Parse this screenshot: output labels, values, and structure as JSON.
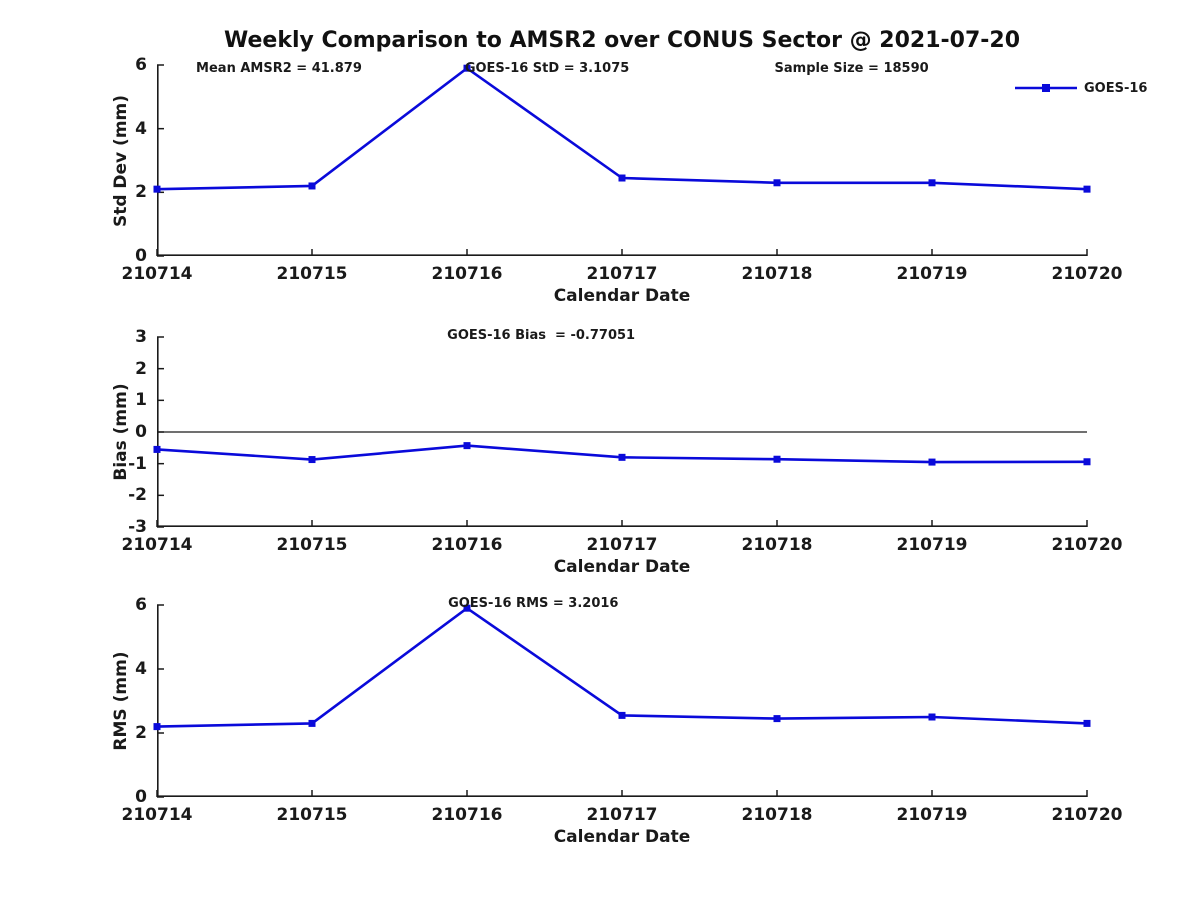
{
  "title": "Weekly Comparison to AMSR2 over CONUS Sector @ 2021-07-20",
  "colors": {
    "line": "#0a0ada",
    "axis": "#1a1a1a",
    "zero_line": "#1a1a1a"
  },
  "legend": {
    "label": "GOES-16"
  },
  "chart_data": [
    {
      "type": "line",
      "name": "std-dev",
      "ylabel": "Std Dev (mm)",
      "xlabel": "Calendar Date",
      "ylim": [
        0,
        6
      ],
      "yticks": [
        0,
        2,
        4,
        6
      ],
      "categories": [
        "210714",
        "210715",
        "210716",
        "210717",
        "210718",
        "210719",
        "210720"
      ],
      "series": [
        {
          "name": "GOES-16",
          "values": [
            2.1,
            2.2,
            5.9,
            2.45,
            2.3,
            2.3,
            2.1
          ]
        }
      ],
      "annotations": [
        {
          "text": "Mean AMSR2 = 41.879"
        },
        {
          "text": "GOES-16 StD = 3.1075"
        },
        {
          "text": "Sample Size = 18590"
        }
      ],
      "zero_line": false,
      "show_legend": true,
      "legend_position": "top-right",
      "grid": false
    },
    {
      "type": "line",
      "name": "bias",
      "ylabel": "Bias (mm)",
      "xlabel": "Calendar Date",
      "ylim": [
        -3,
        3
      ],
      "yticks": [
        3,
        2,
        1,
        0,
        -1,
        -2,
        -3
      ],
      "categories": [
        "210714",
        "210715",
        "210716",
        "210717",
        "210718",
        "210719",
        "210720"
      ],
      "series": [
        {
          "name": "GOES-16",
          "values": [
            -0.55,
            -0.87,
            -0.43,
            -0.8,
            -0.86,
            -0.95,
            -0.94
          ]
        }
      ],
      "annotations": [
        {
          "text": "GOES-16 Bias  = -0.77051"
        }
      ],
      "zero_line": true,
      "show_legend": false,
      "grid": false
    },
    {
      "type": "line",
      "name": "rms",
      "ylabel": "RMS (mm)",
      "xlabel": "Calendar Date",
      "ylim": [
        0,
        6
      ],
      "yticks": [
        0,
        2,
        4,
        6
      ],
      "categories": [
        "210714",
        "210715",
        "210716",
        "210717",
        "210718",
        "210719",
        "210720"
      ],
      "series": [
        {
          "name": "GOES-16",
          "values": [
            2.2,
            2.3,
            5.9,
            2.55,
            2.45,
            2.5,
            2.3
          ]
        }
      ],
      "annotations": [
        {
          "text": "GOES-16 RMS = 3.2016"
        }
      ],
      "zero_line": false,
      "show_legend": false,
      "grid": false
    }
  ]
}
